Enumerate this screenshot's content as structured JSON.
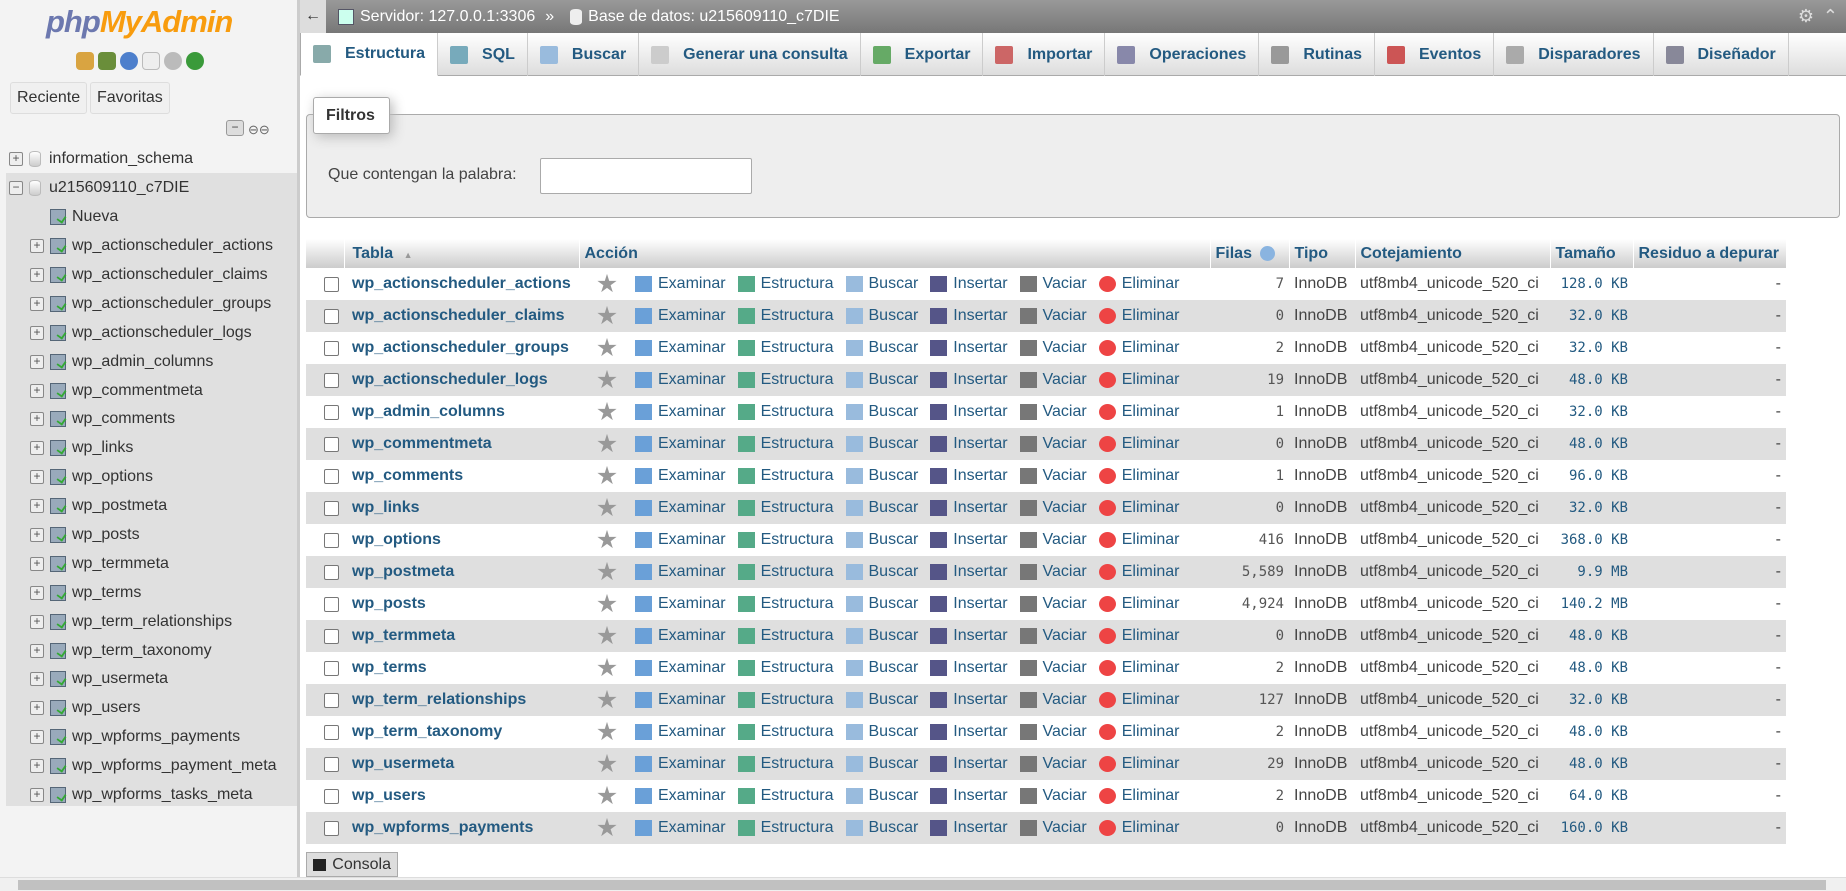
{
  "sidebar": {
    "logo_a": "php",
    "logo_b": "MyAdmin",
    "recent": "Reciente",
    "favorites": "Favoritas",
    "databases": [
      {
        "name": "information_schema",
        "expanded": false
      },
      {
        "name": "u215609110_c7DIE",
        "expanded": true
      }
    ],
    "new_label": "Nueva",
    "tables": [
      "wp_actionscheduler_actions",
      "wp_actionscheduler_claims",
      "wp_actionscheduler_groups",
      "wp_actionscheduler_logs",
      "wp_admin_columns",
      "wp_commentmeta",
      "wp_comments",
      "wp_links",
      "wp_options",
      "wp_postmeta",
      "wp_posts",
      "wp_termmeta",
      "wp_terms",
      "wp_term_relationships",
      "wp_term_taxonomy",
      "wp_usermeta",
      "wp_users",
      "wp_wpforms_payments",
      "wp_wpforms_payment_meta",
      "wp_wpforms_tasks_meta"
    ]
  },
  "breadcrumb": {
    "server": "Servidor: 127.0.0.1:3306",
    "sep": "»",
    "database": "Base de datos: u215609110_c7DIE"
  },
  "tabs": [
    {
      "label": "Estructura",
      "icon": "structure-icon",
      "active": true
    },
    {
      "label": "SQL",
      "icon": "sql-icon"
    },
    {
      "label": "Buscar",
      "icon": "search-icon"
    },
    {
      "label": "Generar una consulta",
      "icon": "query-icon"
    },
    {
      "label": "Exportar",
      "icon": "export-icon"
    },
    {
      "label": "Importar",
      "icon": "import-icon"
    },
    {
      "label": "Operaciones",
      "icon": "wrench-icon"
    },
    {
      "label": "Rutinas",
      "icon": "routines-icon"
    },
    {
      "label": "Eventos",
      "icon": "clock-icon"
    },
    {
      "label": "Disparadores",
      "icon": "triggers-icon"
    },
    {
      "label": "Diseñador",
      "icon": "designer-icon"
    }
  ],
  "filters": {
    "legend": "Filtros",
    "label": "Que contengan la palabra:",
    "value": ""
  },
  "table": {
    "headers": [
      "Tabla",
      "Acción",
      "Filas",
      "Tipo",
      "Cotejamiento",
      "Tamaño",
      "Residuo a depurar"
    ],
    "actions": [
      "Examinar",
      "Estructura",
      "Buscar",
      "Insertar",
      "Vaciar",
      "Eliminar"
    ],
    "rows": [
      [
        "wp_actionscheduler_actions",
        "7",
        "InnoDB",
        "utf8mb4_unicode_520_ci",
        "128.0 KB",
        "-"
      ],
      [
        "wp_actionscheduler_claims",
        "0",
        "InnoDB",
        "utf8mb4_unicode_520_ci",
        "32.0 KB",
        "-"
      ],
      [
        "wp_actionscheduler_groups",
        "2",
        "InnoDB",
        "utf8mb4_unicode_520_ci",
        "32.0 KB",
        "-"
      ],
      [
        "wp_actionscheduler_logs",
        "19",
        "InnoDB",
        "utf8mb4_unicode_520_ci",
        "48.0 KB",
        "-"
      ],
      [
        "wp_admin_columns",
        "1",
        "InnoDB",
        "utf8mb4_unicode_520_ci",
        "32.0 KB",
        "-"
      ],
      [
        "wp_commentmeta",
        "0",
        "InnoDB",
        "utf8mb4_unicode_520_ci",
        "48.0 KB",
        "-"
      ],
      [
        "wp_comments",
        "1",
        "InnoDB",
        "utf8mb4_unicode_520_ci",
        "96.0 KB",
        "-"
      ],
      [
        "wp_links",
        "0",
        "InnoDB",
        "utf8mb4_unicode_520_ci",
        "32.0 KB",
        "-"
      ],
      [
        "wp_options",
        "416",
        "InnoDB",
        "utf8mb4_unicode_520_ci",
        "368.0 KB",
        "-"
      ],
      [
        "wp_postmeta",
        "5,589",
        "InnoDB",
        "utf8mb4_unicode_520_ci",
        "9.9 MB",
        "-"
      ],
      [
        "wp_posts",
        "4,924",
        "InnoDB",
        "utf8mb4_unicode_520_ci",
        "140.2 MB",
        "-"
      ],
      [
        "wp_termmeta",
        "0",
        "InnoDB",
        "utf8mb4_unicode_520_ci",
        "48.0 KB",
        "-"
      ],
      [
        "wp_terms",
        "2",
        "InnoDB",
        "utf8mb4_unicode_520_ci",
        "48.0 KB",
        "-"
      ],
      [
        "wp_term_relationships",
        "127",
        "InnoDB",
        "utf8mb4_unicode_520_ci",
        "32.0 KB",
        "-"
      ],
      [
        "wp_term_taxonomy",
        "2",
        "InnoDB",
        "utf8mb4_unicode_520_ci",
        "48.0 KB",
        "-"
      ],
      [
        "wp_usermeta",
        "29",
        "InnoDB",
        "utf8mb4_unicode_520_ci",
        "48.0 KB",
        "-"
      ],
      [
        "wp_users",
        "2",
        "InnoDB",
        "utf8mb4_unicode_520_ci",
        "64.0 KB",
        "-"
      ],
      [
        "wp_wpforms_payments",
        "0",
        "InnoDB",
        "utf8mb4_unicode_520_ci",
        "160.0 KB",
        "-"
      ]
    ]
  },
  "console": "Consola",
  "colors": {
    "link": "#235a81",
    "logo_php": "#6c78af",
    "logo_myadmin": "#f89c0e"
  }
}
